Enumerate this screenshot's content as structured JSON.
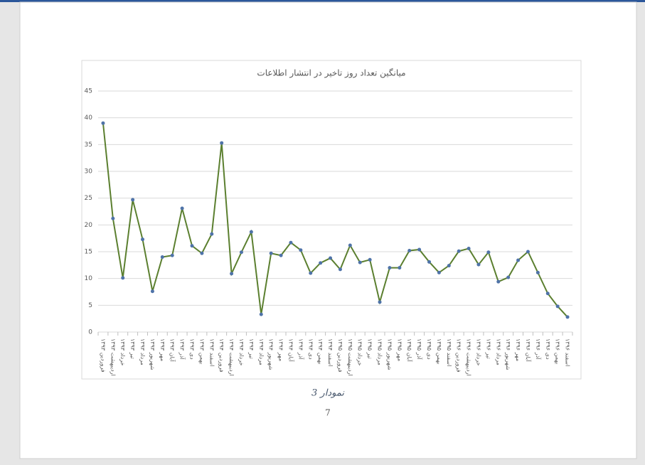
{
  "chart_data": {
    "type": "line",
    "title": "میانگین تعداد روز تاخیر در انتشار اطلاعات",
    "categories": [
      "فروردین ۱۳۹۳",
      "اردیبهشت ۱۳۹۳",
      "خرداد ۱۳۹۳",
      "تیر ۱۳۹۳",
      "مرداد ۱۳۹۳",
      "شهریور ۱۳۹۳",
      "مهر ۱۳۹۳",
      "آبان ۱۳۹۳",
      "آذر ۱۳۹۳",
      "دی ۱۳۹۳",
      "بهمن ۱۳۹۳",
      "اسفند ۱۳۹۳",
      "فروردین ۱۳۹۴",
      "اردیبهشت ۱۳۹۴",
      "خرداد ۱۳۹۴",
      "تیر ۱۳۹۴",
      "مرداد ۱۳۹۴",
      "شهریور ۱۳۹۴",
      "مهر ۱۳۹۴",
      "آبان ۱۳۹۴",
      "آذر ۱۳۹۴",
      "دی ۱۳۹۴",
      "بهمن ۱۳۹۴",
      "اسفند ۱۳۹۴",
      "فروردین ۱۳۹۵",
      "اردیبهشت ۱۳۹۵",
      "خرداد ۱۳۹۵",
      "تیر ۱۳۹۵",
      "مرداد ۱۳۹۵",
      "شهریور ۱۳۹۵",
      "مهر ۱۳۹۵",
      "آبان ۱۳۹۵",
      "آذر ۱۳۹۵",
      "دی ۱۳۹۵",
      "بهمن ۱۳۹۵",
      "اسفند ۱۳۹۵",
      "فروردین ۱۳۹۶",
      "اردیبهشت ۱۳۹۶",
      "خرداد ۱۳۹۶",
      "تیر ۱۳۹۶",
      "مرداد ۱۳۹۶",
      "شهریور ۱۳۹۶",
      "مهر ۱۳۹۶",
      "آبان ۱۳۹۶",
      "آذر ۱۳۹۶",
      "دی ۱۳۹۶",
      "بهمن ۱۳۹۶",
      "اسفند ۱۳۹۶"
    ],
    "values": [
      39,
      21.2,
      10.1,
      24.7,
      17.3,
      7.6,
      14,
      14.3,
      23.1,
      16.1,
      14.7,
      18.3,
      35.3,
      10.9,
      14.9,
      18.7,
      3.3,
      14.7,
      14.3,
      16.7,
      15.3,
      11,
      12.9,
      13.8,
      11.7,
      16.2,
      13,
      13.5,
      5.6,
      12,
      12,
      15.2,
      15.4,
      13.1,
      11.1,
      12.4,
      15.1,
      15.6,
      12.6,
      14.9,
      9.4,
      10.2,
      13.4,
      15,
      11.1,
      7.2,
      4.8,
      2.8
    ],
    "color": "#5b7f2f",
    "marker_color": "#4f73a8",
    "ylim": [
      0,
      45
    ],
    "yticks": [
      0,
      5,
      10,
      15,
      20,
      25,
      30,
      35,
      40,
      45
    ],
    "grid": true
  },
  "caption": "نمودار 3",
  "page_number": "7"
}
